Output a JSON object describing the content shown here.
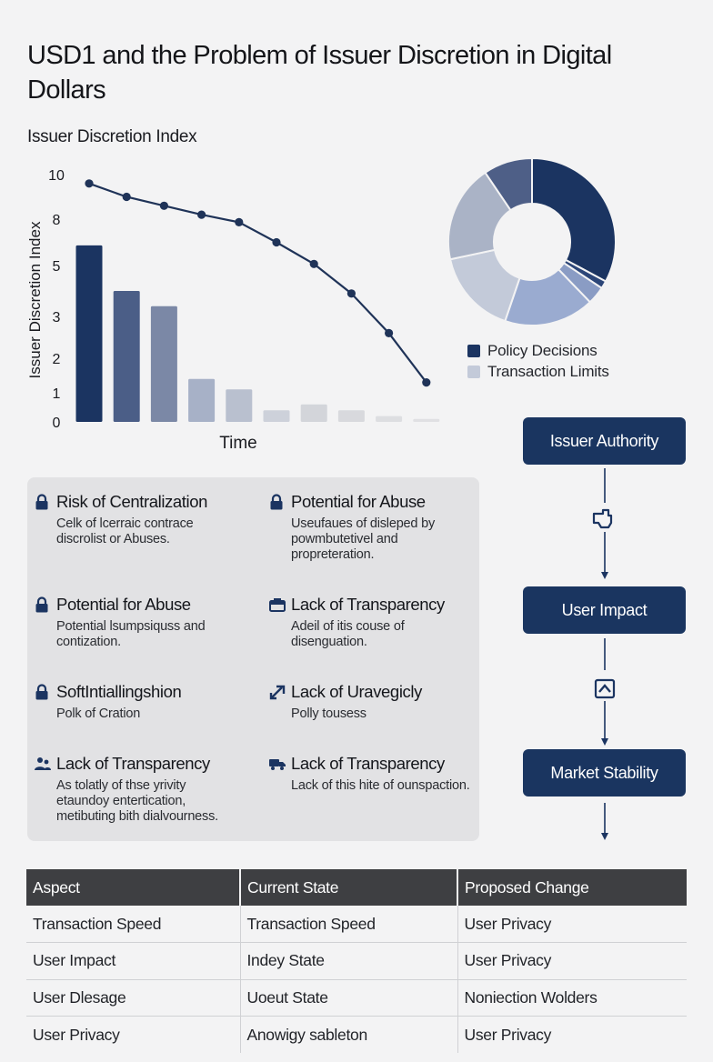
{
  "page": {
    "title": "USD1 and the Problem of Issuer Discretion in Digital Dollars",
    "subtitle": "Issuer Discretion Index"
  },
  "chart_data": [
    {
      "type": "bar+line",
      "ylabel": "Issuer Discretion Index",
      "xlabel": "Time",
      "y_ticks": [
        "0",
        "1",
        "2",
        "3",
        "5",
        "8",
        "10"
      ],
      "bars": [
        {
          "value": 6.3,
          "color": "#1b3461"
        },
        {
          "value": 4.0,
          "color": "#4b5e87"
        },
        {
          "value": 3.4,
          "color": "#7b88a6"
        },
        {
          "value": 1.4,
          "color": "#a7b1c7"
        },
        {
          "value": 1.1,
          "color": "#b9c0cf"
        },
        {
          "value": 0.4,
          "color": "#cdd1da"
        },
        {
          "value": 0.6,
          "color": "#d3d5da"
        },
        {
          "value": 0.4,
          "color": "#d8d9dd"
        },
        {
          "value": 0.2,
          "color": "#dddee1"
        },
        {
          "value": 0.1,
          "color": "#e0e0e3"
        }
      ],
      "line": {
        "color": "#1f3358",
        "values": [
          9.6,
          9.0,
          8.6,
          8.2,
          7.8,
          6.5,
          5.1,
          3.9,
          2.6,
          1.3
        ]
      }
    },
    {
      "type": "pie",
      "style": "donut",
      "slices": [
        {
          "value": 33,
          "color": "#1b3461"
        },
        {
          "value": 1.5,
          "color": "#2c4678"
        },
        {
          "value": 3.5,
          "color": "#8a9cc4"
        },
        {
          "value": 17.5,
          "color": "#9aabd0"
        },
        {
          "value": 16.5,
          "color": "#c3cad9"
        },
        {
          "value": 19,
          "color": "#aab3c6"
        },
        {
          "value": 9.5,
          "color": "#4e5f87"
        }
      ],
      "legend": [
        {
          "label": "Policy Decisions",
          "color": "#1b3461"
        },
        {
          "label": "Transaction Limits",
          "color": "#c3cad9"
        }
      ]
    }
  ],
  "risks": [
    {
      "title": "Risk of Centralization",
      "desc": "Celk of lcerraic contrace discrolist or Abuses.",
      "icon": "lock-icon"
    },
    {
      "title": "Potential for Abuse",
      "desc": "Useufaues of disleped by powmbutetivel and propreteration.",
      "icon": "lock-icon"
    },
    {
      "title": "Potential for Abuse",
      "desc": "Potential lsumpsiquss and contization.",
      "icon": "lock-icon"
    },
    {
      "title": "Lack of Transparency",
      "desc": "Adeil of itis couse of disenguation.",
      "icon": "briefcase-icon"
    },
    {
      "title": "SoftIntiallingshion",
      "desc": "Polk of Cration",
      "icon": "lock-icon"
    },
    {
      "title": "Lack of Uravegicly",
      "desc": "Polly tousess",
      "icon": "expand-arrow-icon"
    },
    {
      "title": "Lack of Transparency",
      "desc": "As tolatly of thse yrivity etaundoy entertication, metibuting bith dialvourness.",
      "icon": "users-icon"
    },
    {
      "title": "Lack of Transparency",
      "desc": "Lack of this hite of ounspaction.",
      "icon": "truck-icon"
    }
  ],
  "flow": {
    "steps": [
      "Issuer Authority",
      "User Impact",
      "Market Stability"
    ],
    "connector_icons": [
      "hand-pointer-icon",
      "chevron-up-box-icon"
    ]
  },
  "table": {
    "headers": [
      "Aspect",
      "Current State",
      "Proposed Change"
    ],
    "rows": [
      [
        "Transaction Speed",
        "Transaction Speed",
        "User Privacy"
      ],
      [
        "User Impact",
        "Indey State",
        "User Privacy"
      ],
      [
        "User Dlesage",
        "Uoeut State",
        "Noniection Wolders"
      ],
      [
        "User Privacy",
        "Anowigy sableton",
        "User Privacy"
      ]
    ]
  }
}
